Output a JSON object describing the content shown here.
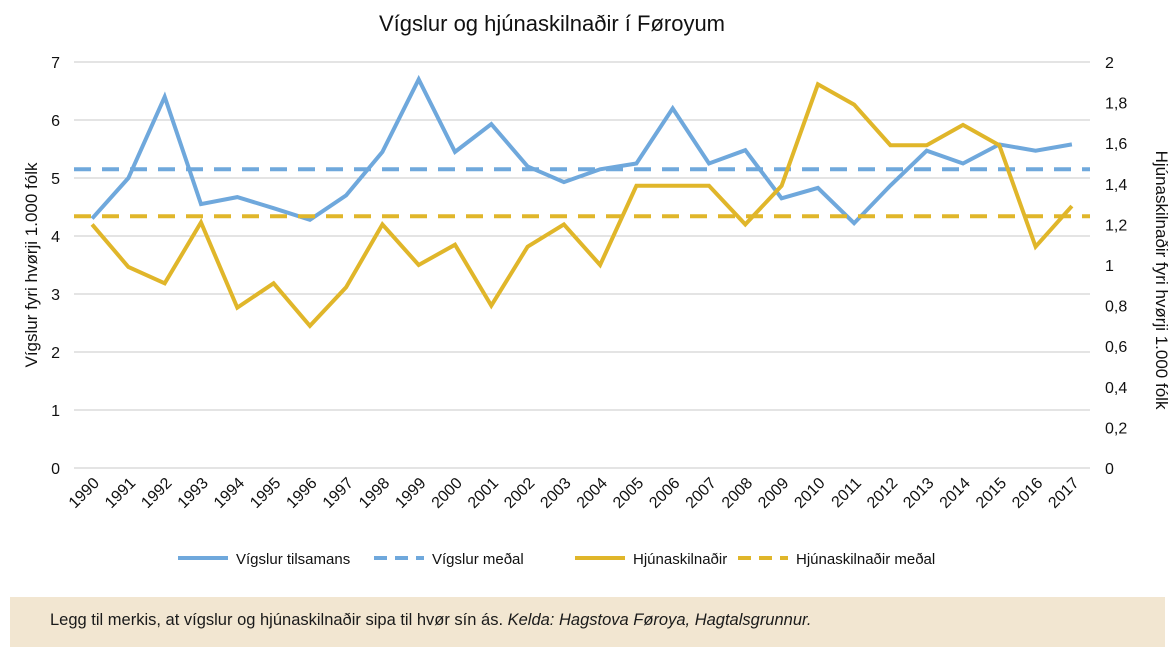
{
  "chart_data": {
    "type": "line",
    "title": "Vígslur og hjúnaskilnaðir í Føroyum",
    "ylabel_left": "Vígslur fyri hvørji 1.000 fólk",
    "ylabel_right": "Hjúnaskilnaðir fyri hvørji 1.000 fólk",
    "ylim_left": [
      0,
      7
    ],
    "ylim_right": [
      0,
      2
    ],
    "yticks_left": [
      "0",
      "1",
      "2",
      "3",
      "4",
      "5",
      "6",
      "7"
    ],
    "yticks_right": [
      "0",
      "0,2",
      "0,4",
      "0,6",
      "0,8",
      "1",
      "1,2",
      "1,4",
      "1,6",
      "1,8",
      "2"
    ],
    "grid": true,
    "legend_position": "bottom",
    "categories": [
      "1990",
      "1991",
      "1992",
      "1993",
      "1994",
      "1995",
      "1996",
      "1997",
      "1998",
      "1999",
      "2000",
      "2001",
      "2002",
      "2003",
      "2004",
      "2005",
      "2006",
      "2007",
      "2008",
      "2009",
      "2010",
      "2011",
      "2012",
      "2013",
      "2014",
      "2015",
      "2016",
      "2017"
    ],
    "series": [
      {
        "name": "Vígslur tilsamans",
        "axis": "left",
        "style": "solid",
        "color": "#6fa8dc",
        "values": [
          4.3,
          5.0,
          6.4,
          4.55,
          4.67,
          4.48,
          4.28,
          4.7,
          5.45,
          6.7,
          5.45,
          5.93,
          5.2,
          4.93,
          5.15,
          5.25,
          6.2,
          5.25,
          5.48,
          4.65,
          4.83,
          4.22,
          4.87,
          5.47,
          5.25,
          5.58,
          5.47,
          5.58
        ]
      },
      {
        "name": "Vígslur meðal",
        "axis": "left",
        "style": "dashed",
        "color": "#6fa8dc",
        "values": [
          5.15,
          5.15,
          5.15,
          5.15,
          5.15,
          5.15,
          5.15,
          5.15,
          5.15,
          5.15,
          5.15,
          5.15,
          5.15,
          5.15,
          5.15,
          5.15,
          5.15,
          5.15,
          5.15,
          5.15,
          5.15,
          5.15,
          5.15,
          5.15,
          5.15,
          5.15,
          5.15,
          5.15
        ]
      },
      {
        "name": "Hjúnaskilnaðir",
        "axis": "right",
        "style": "solid",
        "color": "#e0b62a",
        "values": [
          1.2,
          0.99,
          0.91,
          1.21,
          0.79,
          0.91,
          0.7,
          0.89,
          1.2,
          1.0,
          1.1,
          0.8,
          1.09,
          1.2,
          1.0,
          1.39,
          1.39,
          1.39,
          1.2,
          1.39,
          1.89,
          1.79,
          1.59,
          1.59,
          1.69,
          1.59,
          1.09,
          1.29
        ]
      },
      {
        "name": "Hjúnaskilnaðir meðal",
        "axis": "right",
        "style": "dashed",
        "color": "#e0b62a",
        "values": [
          1.24,
          1.24,
          1.24,
          1.24,
          1.24,
          1.24,
          1.24,
          1.24,
          1.24,
          1.24,
          1.24,
          1.24,
          1.24,
          1.24,
          1.24,
          1.24,
          1.24,
          1.24,
          1.24,
          1.24,
          1.24,
          1.24,
          1.24,
          1.24,
          1.24,
          1.24,
          1.24,
          1.24
        ]
      }
    ]
  },
  "note": {
    "text": "Legg til merkis, at vígslur og hjúnaskilnaðir sipa til hvør sín ás. ",
    "source": "Kelda: Hagstova Føroya, Hagtalsgrunnur."
  }
}
